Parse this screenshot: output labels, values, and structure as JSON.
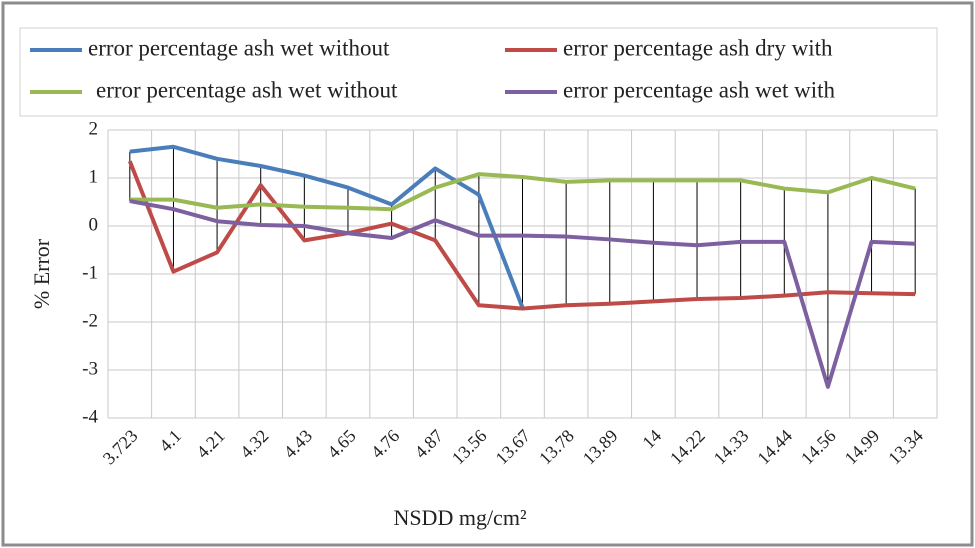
{
  "chart_data": {
    "type": "line",
    "x_label": "NSDD mg/cm²",
    "y_label": "% Error",
    "categories": [
      "3.723",
      "4.1",
      "4.21",
      "4.32",
      "4.43",
      "4.65",
      "4.76",
      "4.87",
      "13.56",
      "13.67",
      "13.78",
      "13.89",
      "14",
      "14.22",
      "14.33",
      "14.44",
      "14.56",
      "14.99",
      "13.34"
    ],
    "series": [
      {
        "name": "error percentage ash wet without",
        "color": "#4a7ebb",
        "values": [
          1.55,
          1.65,
          1.4,
          1.25,
          1.05,
          0.8,
          0.45,
          1.2,
          0.65,
          -1.7,
          null,
          null,
          null,
          null,
          null,
          null,
          null,
          null,
          null
        ]
      },
      {
        "name": "error percentage ash dry with",
        "color": "#be4b48",
        "values": [
          1.35,
          -0.95,
          -0.55,
          0.85,
          -0.3,
          -0.15,
          0.05,
          -0.3,
          -1.65,
          -1.72,
          -1.65,
          -1.62,
          -1.57,
          -1.52,
          -1.5,
          -1.45,
          -1.38,
          -1.4,
          -1.42
        ]
      },
      {
        "name": "error percentage ash wet without",
        "color": "#98b954",
        "values": [
          0.55,
          0.55,
          0.38,
          0.45,
          0.4,
          0.38,
          0.35,
          0.8,
          1.08,
          1.02,
          0.92,
          0.95,
          0.95,
          0.95,
          0.95,
          0.78,
          0.7,
          1.0,
          0.78
        ]
      },
      {
        "name": "error percentage ash wet with",
        "color": "#7d60a0",
        "values": [
          0.52,
          0.35,
          0.1,
          0.02,
          0.0,
          -0.15,
          -0.25,
          0.12,
          -0.2,
          -0.2,
          -0.22,
          -0.28,
          -0.35,
          -0.4,
          -0.33,
          -0.33,
          -3.35,
          -0.33,
          -0.37
        ]
      }
    ],
    "ylim": [
      -4,
      2
    ],
    "yticks": [
      -4,
      -3,
      -2,
      -1,
      0,
      1,
      2
    ],
    "grid": true,
    "high_low_lines": true,
    "legend": "top"
  }
}
